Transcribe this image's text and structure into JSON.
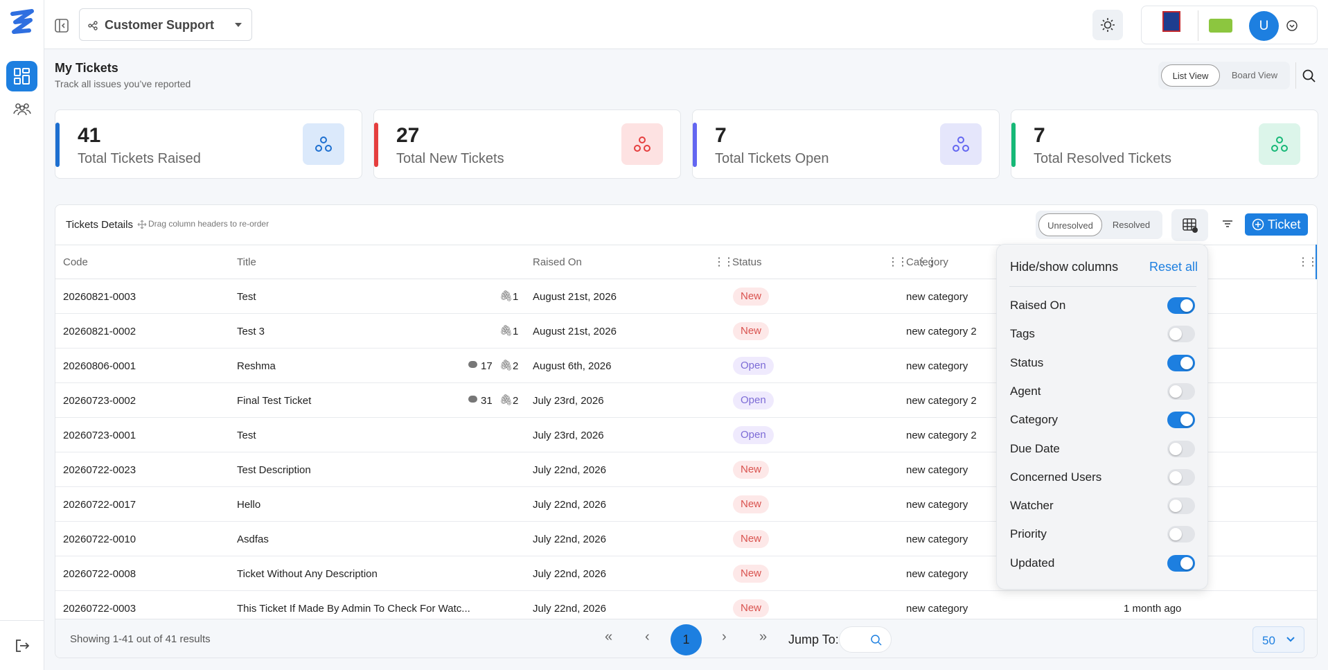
{
  "header": {
    "workspace": "Customer Support",
    "avatar": "U"
  },
  "page": {
    "title": "My Tickets",
    "subtitle": "Track all issues you’ve reported",
    "views": [
      "List View",
      "Board View"
    ]
  },
  "stats": [
    {
      "value": "41",
      "label": "Total Tickets Raised"
    },
    {
      "value": "27",
      "label": "Total New Tickets"
    },
    {
      "value": "7",
      "label": "Total Tickets Open"
    },
    {
      "value": "7",
      "label": "Total Resolved Tickets"
    }
  ],
  "table": {
    "title": "Tickets Details",
    "hint": "Drag column headers to re-order",
    "tabs": [
      "Unresolved",
      "Resolved"
    ],
    "new_button": "Ticket",
    "columns": [
      "Code",
      "Title",
      "Raised On",
      "Status",
      "Category"
    ],
    "rows": [
      {
        "code": "20260821-0003",
        "title": "Test",
        "attachments": "1",
        "raised_on": "August 21st, 2026",
        "status": "New",
        "category": "new category"
      },
      {
        "code": "20260821-0002",
        "title": "Test 3",
        "attachments": "1",
        "raised_on": "August 21st, 2026",
        "status": "New",
        "category": "new category 2"
      },
      {
        "code": "20260806-0001",
        "title": "Reshma",
        "comments": "17",
        "attachments": "2",
        "raised_on": "August 6th, 2026",
        "status": "Open",
        "category": "new category"
      },
      {
        "code": "20260723-0002",
        "title": "Final Test Ticket",
        "comments": "31",
        "attachments": "2",
        "raised_on": "July 23rd, 2026",
        "status": "Open",
        "category": "new category 2"
      },
      {
        "code": "20260723-0001",
        "title": "Test",
        "raised_on": "July 23rd, 2026",
        "status": "Open",
        "category": "new category 2"
      },
      {
        "code": "20260722-0023",
        "title": "Test Description",
        "raised_on": "July 22nd, 2026",
        "status": "New",
        "category": "new category"
      },
      {
        "code": "20260722-0017",
        "title": "Hello",
        "raised_on": "July 22nd, 2026",
        "status": "New",
        "category": "new category"
      },
      {
        "code": "20260722-0010",
        "title": "Asdfas",
        "raised_on": "July 22nd, 2026",
        "status": "New",
        "category": "new category"
      },
      {
        "code": "20260722-0008",
        "title": "Ticket Without Any Description",
        "raised_on": "July 22nd, 2026",
        "status": "New",
        "category": "new category"
      },
      {
        "code": "20260722-0003",
        "title": "This Ticket If Made By Admin To Check For Watc...",
        "raised_on": "July 22nd, 2026",
        "status": "New",
        "category": "new category",
        "updated": "1 month ago"
      }
    ]
  },
  "pagination": {
    "summary": "Showing 1-41 out of 41 results",
    "current": "1",
    "jump_label": "Jump To:",
    "page_size": "50"
  },
  "column_menu": {
    "title": "Hide/show columns",
    "reset": "Reset all",
    "items": [
      {
        "label": "Raised On",
        "on": true
      },
      {
        "label": "Tags",
        "on": false
      },
      {
        "label": "Status",
        "on": true
      },
      {
        "label": "Agent",
        "on": false
      },
      {
        "label": "Category",
        "on": true
      },
      {
        "label": "Due Date",
        "on": false
      },
      {
        "label": "Concerned Users",
        "on": false
      },
      {
        "label": "Watcher",
        "on": false
      },
      {
        "label": "Priority",
        "on": false
      },
      {
        "label": "Updated",
        "on": true
      }
    ]
  }
}
